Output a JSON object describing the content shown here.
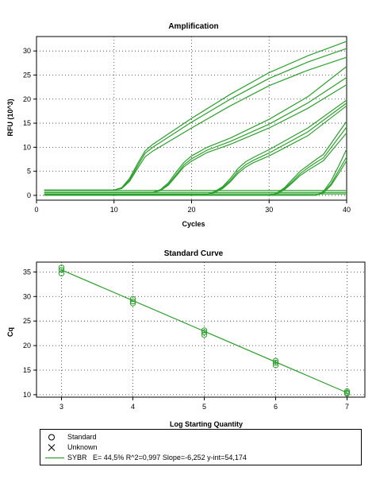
{
  "chart_data": [
    {
      "type": "line",
      "title": "Amplification",
      "xlabel": "Cycles",
      "ylabel": "RFU (10^3)",
      "xlim": [
        0,
        40
      ],
      "ylim": [
        -1,
        33
      ],
      "xticks": [
        "0",
        "10",
        "20",
        "30",
        "40"
      ],
      "yticks": [
        "0",
        "5",
        "10",
        "15",
        "20",
        "25",
        "30"
      ],
      "grid": true,
      "line_color": "#2ca02c",
      "series": [
        {
          "x": [
            1,
            10,
            11,
            12,
            13,
            14,
            15,
            20,
            25,
            30,
            35,
            40
          ],
          "values": [
            1.1,
            1.1,
            1.6,
            3.5,
            6.5,
            9.2,
            10.6,
            16.0,
            21.0,
            25.5,
            29.0,
            32.0
          ]
        },
        {
          "x": [
            1,
            10,
            11,
            12,
            13,
            14,
            15,
            20,
            25,
            30,
            35,
            40
          ],
          "values": [
            1.1,
            1.1,
            1.5,
            3.2,
            6.0,
            8.7,
            10.0,
            15.2,
            20.0,
            24.3,
            27.7,
            30.5
          ]
        },
        {
          "x": [
            1,
            10,
            11,
            12,
            13,
            14,
            15,
            20,
            25,
            30,
            35,
            40
          ],
          "values": [
            1.1,
            1.1,
            1.4,
            2.9,
            5.5,
            8.0,
            9.2,
            14.0,
            18.6,
            22.8,
            26.0,
            28.7
          ]
        },
        {
          "x": [
            1,
            15,
            16,
            17,
            18,
            19,
            20,
            22,
            25,
            30,
            35,
            40
          ],
          "values": [
            0.6,
            0.6,
            1.2,
            2.6,
            4.8,
            6.8,
            8.2,
            10.0,
            11.9,
            15.8,
            20.5,
            26.8
          ]
        },
        {
          "x": [
            1,
            15,
            16,
            17,
            18,
            19,
            20,
            22,
            25,
            30,
            35,
            40
          ],
          "values": [
            0.6,
            0.6,
            1.1,
            2.3,
            4.3,
            6.3,
            7.6,
            9.4,
            11.2,
            14.8,
            19.2,
            24.5
          ]
        },
        {
          "x": [
            1,
            15,
            16,
            17,
            18,
            19,
            20,
            22,
            25,
            30,
            35,
            40
          ],
          "values": [
            0.6,
            0.6,
            1.0,
            2.1,
            4.0,
            5.9,
            7.1,
            8.9,
            10.6,
            14.0,
            18.1,
            23.0
          ]
        },
        {
          "x": [
            1,
            22,
            23,
            24,
            25,
            26,
            27,
            28,
            30,
            35,
            40
          ],
          "values": [
            0.2,
            0.2,
            0.8,
            1.8,
            3.5,
            5.6,
            7.0,
            7.9,
            9.5,
            14.0,
            19.8
          ]
        },
        {
          "x": [
            1,
            22,
            23,
            24,
            25,
            26,
            27,
            28,
            30,
            35,
            40
          ],
          "values": [
            0.2,
            0.2,
            0.7,
            1.6,
            3.1,
            5.0,
            6.4,
            7.3,
            8.8,
            13.2,
            19.2
          ]
        },
        {
          "x": [
            1,
            22,
            23,
            24,
            25,
            26,
            27,
            28,
            30,
            35,
            40
          ],
          "values": [
            0.2,
            0.2,
            0.6,
            1.4,
            2.8,
            4.6,
            5.9,
            6.8,
            8.2,
            12.4,
            18.6
          ]
        },
        {
          "x": [
            1,
            30,
            31,
            32,
            33,
            34,
            35,
            36,
            37,
            40
          ],
          "values": [
            0.0,
            0.0,
            0.5,
            1.6,
            3.3,
            5.0,
            6.2,
            7.4,
            8.5,
            15.4
          ]
        },
        {
          "x": [
            1,
            30,
            31,
            32,
            33,
            34,
            35,
            36,
            37,
            40
          ],
          "values": [
            0.0,
            0.0,
            0.4,
            1.4,
            2.9,
            4.5,
            5.7,
            6.8,
            7.8,
            14.2
          ]
        },
        {
          "x": [
            1,
            30,
            31,
            32,
            33,
            34,
            35,
            36,
            37,
            40
          ],
          "values": [
            0.0,
            0.0,
            0.3,
            1.2,
            2.6,
            4.1,
            5.2,
            6.2,
            7.2,
            13.0
          ]
        },
        {
          "x": [
            1,
            36,
            37,
            38,
            39,
            40
          ],
          "values": [
            0.0,
            0.0,
            0.8,
            3.0,
            6.2,
            9.6
          ]
        },
        {
          "x": [
            1,
            36,
            37,
            38,
            39,
            40
          ],
          "values": [
            0.0,
            0.0,
            0.6,
            2.4,
            5.2,
            8.0
          ]
        },
        {
          "x": [
            1,
            36,
            37,
            38,
            39,
            40
          ],
          "values": [
            0.0,
            0.0,
            0.5,
            2.1,
            4.6,
            7.2
          ]
        },
        {
          "x": [
            1,
            40
          ],
          "values": [
            0.3,
            0.3
          ]
        },
        {
          "x": [
            1,
            40
          ],
          "values": [
            0.6,
            0.6
          ]
        },
        {
          "x": [
            1,
            40
          ],
          "values": [
            1.0,
            1.0
          ]
        }
      ]
    },
    {
      "type": "scatter",
      "title": "Standard Curve",
      "xlabel": "Log Starting Quantity",
      "ylabel": "Cq",
      "xlim": [
        2.65,
        7.25
      ],
      "ylim": [
        9.5,
        37
      ],
      "xticks": [
        "3",
        "4",
        "5",
        "6",
        "7"
      ],
      "yticks": [
        "10",
        "15",
        "20",
        "25",
        "30",
        "35"
      ],
      "grid": true,
      "point_color": "#2ca02c",
      "points": {
        "x": [
          3,
          3,
          3,
          4,
          4,
          4,
          5,
          5,
          5,
          6,
          6,
          6,
          7,
          7,
          7
        ],
        "values": [
          35.9,
          35.4,
          34.7,
          29.5,
          29.0,
          28.6,
          23.1,
          22.7,
          22.2,
          16.9,
          16.5,
          16.0,
          10.7,
          10.4,
          10.2
        ]
      },
      "fit_line": {
        "x": [
          3,
          7
        ],
        "values": [
          35.42,
          10.41
        ]
      }
    }
  ],
  "legend": {
    "entries": [
      {
        "symbol": "circle-icon",
        "label": "Standard"
      },
      {
        "symbol": "cross-icon",
        "label": "Unknown"
      },
      {
        "symbol": "line-icon",
        "label": "SYBR",
        "detail": "E= 44,5% R^2=0,997 Slope=-6,252 y-int=54,174"
      }
    ]
  }
}
